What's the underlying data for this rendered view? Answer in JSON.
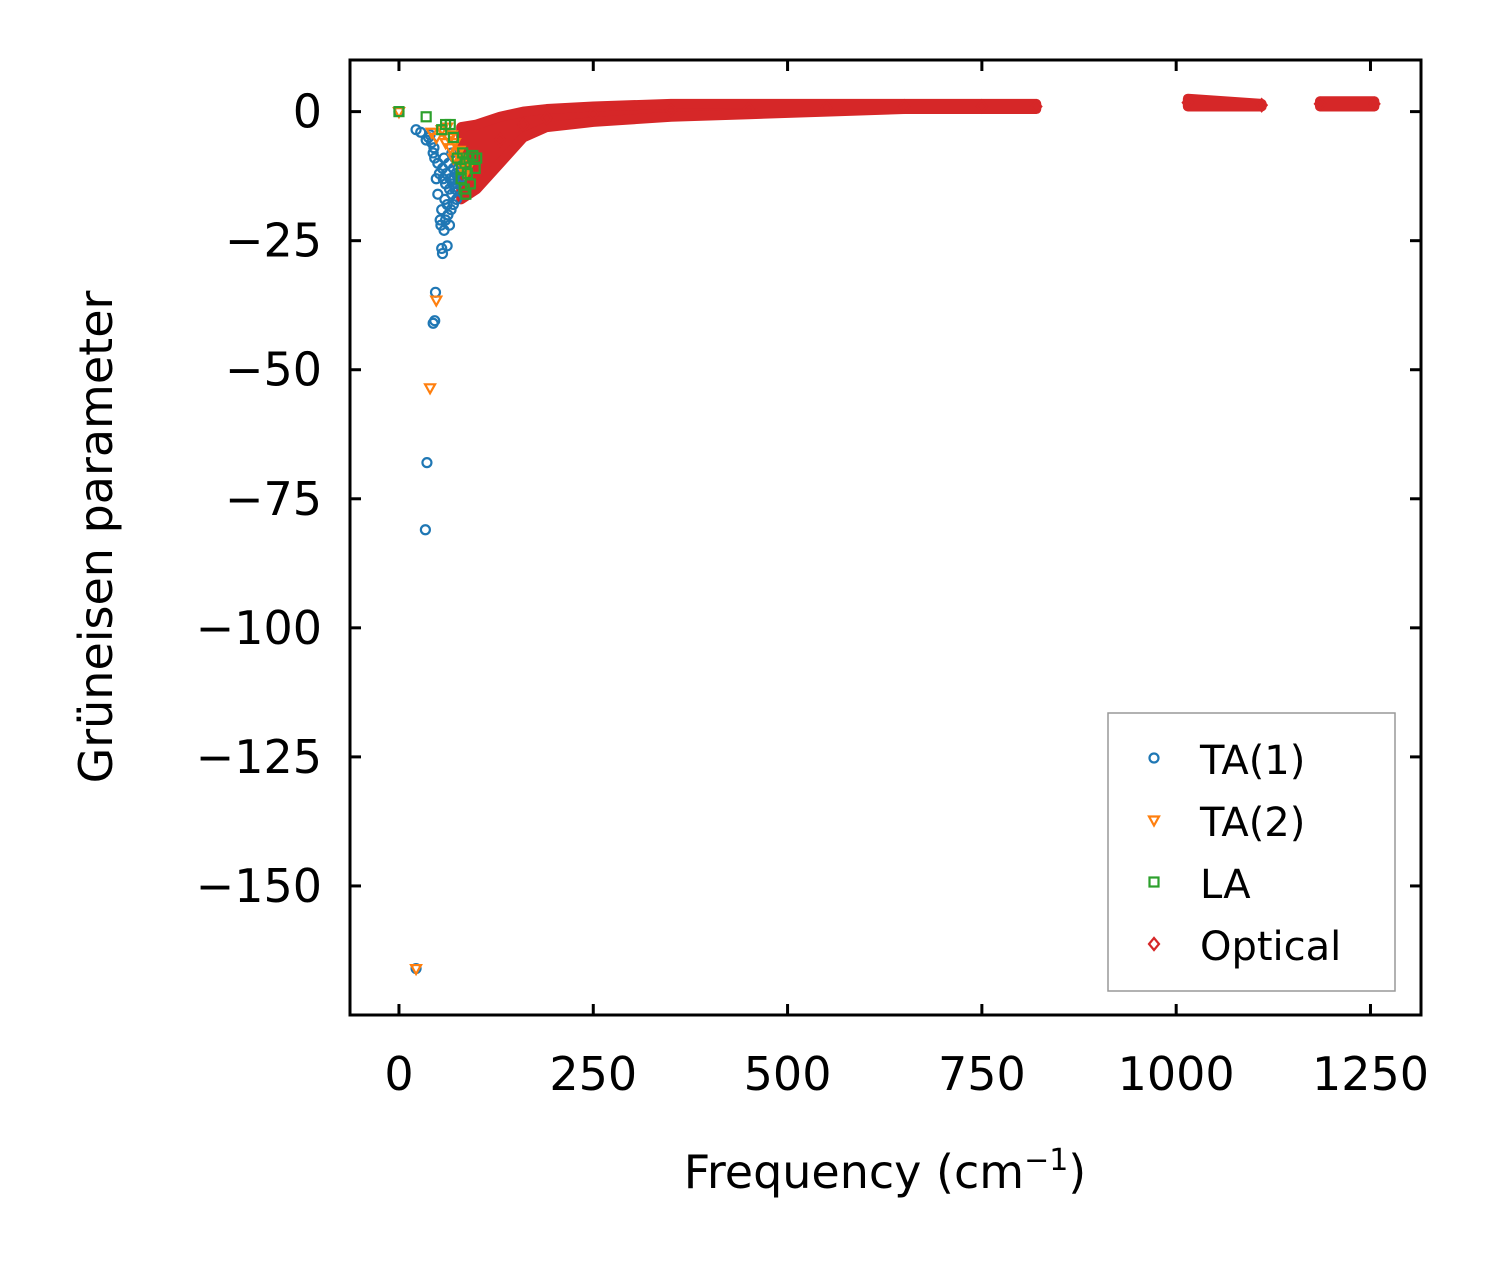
{
  "chart_data": {
    "type": "scatter",
    "xlabel": "Frequency (cm",
    "xlabel_sup": "−1",
    "xlabel_end": ")",
    "ylabel": "Grüneisen parameter",
    "xlim": [
      -63,
      1315
    ],
    "ylim": [
      -175,
      10
    ],
    "xticks": [
      0,
      250,
      500,
      750,
      1000,
      1250
    ],
    "xtick_labels": [
      "0",
      "250",
      "500",
      "750",
      "1000",
      "1250"
    ],
    "yticks": [
      0,
      -25,
      -50,
      -75,
      -100,
      -125,
      -150
    ],
    "ytick_labels": [
      "0",
      "−25",
      "−50",
      "−75",
      "−100",
      "−125",
      "−150"
    ],
    "legend_position": "lower-right",
    "series": [
      {
        "name": "TA(1)",
        "marker": "circle",
        "color": "#1f77b4",
        "x": [
          0,
          22,
          28,
          35,
          38,
          40,
          42,
          44,
          45,
          46,
          48,
          50,
          50,
          52,
          53,
          54,
          55,
          56,
          57,
          58,
          58,
          59,
          60,
          60,
          61,
          62,
          62,
          63,
          64,
          65,
          65,
          66,
          67,
          68,
          68,
          69,
          70,
          70,
          71,
          72,
          72,
          73,
          74,
          75,
          76,
          78,
          80,
          44,
          46,
          47,
          55,
          56,
          36,
          34,
          22
        ],
        "y": [
          0,
          -3.5,
          -4,
          -5.5,
          -5,
          -4.5,
          -6,
          -8,
          -7,
          -9,
          -13,
          -10,
          -16,
          -12,
          -21,
          -22,
          -19,
          -11,
          -13,
          -23,
          -9,
          -17,
          -14,
          -21,
          -12,
          -26,
          -18,
          -20,
          -10,
          -15,
          -22,
          -13,
          -19,
          -8,
          -16,
          -14,
          -11,
          -18,
          -13,
          -15,
          -9,
          -12,
          -17,
          -14,
          -11,
          -13,
          -10,
          -41,
          -40.5,
          -35,
          -26.5,
          -27.5,
          -68,
          -81,
          -166
        ]
      },
      {
        "name": "TA(2)",
        "marker": "triangle-down",
        "color": "#ff7f0e",
        "x": [
          0,
          42,
          48,
          55,
          58,
          60,
          62,
          64,
          66,
          68,
          70,
          72,
          75,
          78,
          80,
          82,
          85,
          88,
          48,
          40,
          22
        ],
        "y": [
          0,
          -4,
          -5,
          -3.5,
          -4,
          -6,
          -3,
          -5,
          -7,
          -4.5,
          -9,
          -6,
          -8,
          -7.5,
          -10,
          -9,
          -12,
          -11,
          -36.5,
          -53.5,
          -166
        ]
      },
      {
        "name": "LA",
        "marker": "square",
        "color": "#2ca02c",
        "x": [
          0,
          35,
          55,
          60,
          66,
          70,
          75,
          80,
          82,
          85,
          88,
          90,
          92,
          95,
          98,
          100,
          80,
          84,
          86
        ],
        "y": [
          0,
          -1,
          -3.5,
          -2.5,
          -2.5,
          -5,
          -9,
          -11,
          -8,
          -10,
          -12,
          -9,
          -14,
          -8.5,
          -11,
          -9,
          -13,
          -15,
          -16
        ]
      },
      {
        "name": "Optical",
        "marker": "diamond",
        "color": "#d62728",
        "bands": [
          {
            "x": [
              80,
              100,
              130,
              160,
              190,
              250,
              350,
              450,
              550,
              650,
              750,
              820
            ],
            "y_lower": [
              -17,
              -15,
              -10,
              -5,
              -3,
              -2,
              -1,
              -0.5,
              0,
              0.5,
              0.5,
              0.5
            ],
            "y_upper": [
              -3,
              -2.5,
              -1,
              0,
              0.5,
              1,
              1.5,
              1.5,
              1.5,
              1.5,
              1.5,
              1.5
            ]
          },
          {
            "x": [
              1015,
              1110
            ],
            "y_lower": [
              1,
              1
            ],
            "y_upper": [
              2.5,
              1.5
            ]
          },
          {
            "x": [
              1185,
              1255
            ],
            "y_lower": [
              1,
              1
            ],
            "y_upper": [
              2,
              2
            ]
          }
        ]
      }
    ]
  }
}
